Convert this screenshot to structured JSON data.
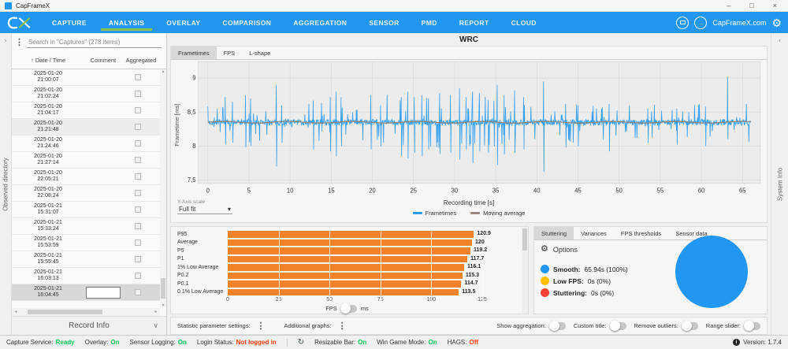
{
  "icons": {
    "kebab": "⋮",
    "gear": "⚙",
    "sort_asc": "↑",
    "chevron_right": "›",
    "chevron_left": "‹",
    "chevron_down": "∨",
    "dropdown_caret": "▾",
    "up_arrow": "▲",
    "down_arrow": "▼",
    "left_arrow": "◄",
    "right_arrow": "►",
    "minimize": "–",
    "maximize": "□",
    "close": "×",
    "refresh": "↻",
    "info": "i",
    "login_arrow": "→",
    "app_glyph": "✓"
  },
  "window": {
    "title": "CapFrameX"
  },
  "navbar": {
    "items": [
      "CAPTURE",
      "ANALYSIS",
      "OVERLAY",
      "COMPARISON",
      "AGGREGATION",
      "SENSOR",
      "PMD",
      "REPORT",
      "CLOUD"
    ],
    "active": "ANALYSIS",
    "right_link": "CapFrameX.com",
    "colors": {
      "bar": "#2196F3",
      "active_underline": "#8BC34A"
    }
  },
  "sidebar": {
    "left_strip_label": "Observed directory",
    "search_placeholder": "Search in \"Captures\" (278 items)",
    "columns": {
      "date": "Date / Time",
      "comment": "Comment",
      "aggregated": "Aggregated"
    },
    "rows": [
      {
        "date": "2025-01-20",
        "time": "21:00:07"
      },
      {
        "date": "2025-01-20",
        "time": "21:02:24"
      },
      {
        "date": "2025-01-20",
        "time": "21:04:17"
      },
      {
        "date": "2025-01-20",
        "time": "21:21:48",
        "highlight": true
      },
      {
        "date": "2025-01-20",
        "time": "21:24:46"
      },
      {
        "date": "2025-01-20",
        "time": "21:27:14"
      },
      {
        "date": "2025-01-20",
        "time": "22:05:21"
      },
      {
        "date": "2025-01-20",
        "time": "22:08:24"
      },
      {
        "date": "2025-01-21",
        "time": "15:31:07"
      },
      {
        "date": "2025-01-21",
        "time": "15:33:24"
      },
      {
        "date": "2025-01-21",
        "time": "15:53:59"
      },
      {
        "date": "2025-01-21",
        "time": "15:55:45"
      },
      {
        "date": "2025-01-21",
        "time": "16:03:13"
      },
      {
        "date": "2025-01-21",
        "time": "16:04:45",
        "selected": true,
        "editing": true
      }
    ],
    "record_info_label": "Record Info"
  },
  "right_strip_label": "System Info",
  "main": {
    "title": "WRC",
    "tabs": [
      "Frametimes",
      "FPS",
      "L-shape"
    ],
    "active_tab": "Frametimes",
    "y_axis_scale_label": "Y-Axis scale",
    "y_axis_scale_value": "Full fit"
  },
  "chart_data": [
    {
      "type": "line",
      "title": "WRC",
      "xlabel": "Recording time [s]",
      "ylabel": "Frametime [ms]",
      "xlim": [
        0,
        66
      ],
      "xticks": [
        0,
        5,
        10,
        15,
        20,
        25,
        30,
        35,
        40,
        45,
        50,
        55,
        60,
        65
      ],
      "ylim": [
        7.45,
        9.17
      ],
      "yticks": [
        9,
        8.5,
        8,
        7.5
      ],
      "ytick_labels": [
        "9",
        "8,5",
        "8",
        "7,5"
      ],
      "grid": true,
      "legend_position": "bottom",
      "series": [
        {
          "name": "Frametimes",
          "color": "#2A9DF4"
        },
        {
          "name": "Moving average",
          "color": "#95857A"
        }
      ],
      "frametimes": {
        "duration_s": 66,
        "baseline_ms": 8.35,
        "noise_ms": 0.045,
        "points": 1500,
        "seed": 7,
        "small_spike_rate": 0.09,
        "small_spike_ms": [
          0.06,
          0.28
        ],
        "dense_region": {
          "from": 20,
          "to": 40,
          "gain": 1.45
        },
        "spikes": [
          {
            "t": 2.1,
            "hi": 8.72,
            "lo": 8.02
          },
          {
            "t": 3.0,
            "hi": 8.65,
            "lo": 8.05
          },
          {
            "t": 4.6,
            "hi": 8.75,
            "lo": 7.98
          },
          {
            "t": 5.2,
            "hi": 8.7,
            "lo": 8.0
          },
          {
            "t": 8.3,
            "hi": 8.9,
            "lo": 7.7
          },
          {
            "t": 9.0,
            "hi": 8.6,
            "lo": 8.05
          },
          {
            "t": 12.8,
            "hi": 8.67,
            "lo": 7.95
          },
          {
            "t": 14.9,
            "hi": 8.72,
            "lo": 7.92
          },
          {
            "t": 15.6,
            "hi": 8.8,
            "lo": 7.85
          },
          {
            "t": 16.2,
            "hi": 8.72,
            "lo": 8.0
          },
          {
            "t": 19.8,
            "hi": 8.75,
            "lo": 7.95
          },
          {
            "t": 21.0,
            "hi": 8.6,
            "lo": 8.0
          },
          {
            "t": 23.5,
            "hi": 8.72,
            "lo": 7.85
          },
          {
            "t": 24.3,
            "hi": 8.8,
            "lo": 7.82
          },
          {
            "t": 25.1,
            "hi": 8.72,
            "lo": 7.9
          },
          {
            "t": 26.0,
            "hi": 8.75,
            "lo": 7.85
          },
          {
            "t": 26.8,
            "hi": 8.7,
            "lo": 7.95
          },
          {
            "t": 28.2,
            "hi": 8.78,
            "lo": 7.88
          },
          {
            "t": 29.5,
            "hi": 8.75,
            "lo": 7.9
          },
          {
            "t": 30.6,
            "hi": 8.85,
            "lo": 7.8
          },
          {
            "t": 31.4,
            "hi": 8.72,
            "lo": 7.95
          },
          {
            "t": 32.2,
            "hi": 8.8,
            "lo": 7.75
          },
          {
            "t": 33.0,
            "hi": 8.78,
            "lo": 7.92
          },
          {
            "t": 34.1,
            "hi": 8.68,
            "lo": 7.9
          },
          {
            "t": 35.2,
            "hi": 8.9,
            "lo": 7.72
          },
          {
            "t": 36.0,
            "hi": 8.75,
            "lo": 7.88
          },
          {
            "t": 37.3,
            "hi": 8.82,
            "lo": 7.9
          },
          {
            "t": 38.4,
            "hi": 8.72,
            "lo": 7.95
          },
          {
            "t": 40.8,
            "hi": 8.95,
            "lo": 7.62
          },
          {
            "t": 43.5,
            "hi": 8.62,
            "lo": 7.98
          },
          {
            "t": 45.0,
            "hi": 8.6,
            "lo": 8.0
          },
          {
            "t": 48.8,
            "hi": 8.62,
            "lo": 7.92
          },
          {
            "t": 53.5,
            "hi": 8.55,
            "lo": 8.05
          },
          {
            "t": 57.0,
            "hi": 8.55,
            "lo": 8.02
          },
          {
            "t": 60.5,
            "hi": 8.58,
            "lo": 8.0
          },
          {
            "t": 63.2,
            "hi": 9.02,
            "lo": 8.1
          }
        ]
      },
      "moving_average": {
        "value_ms": 8.35,
        "wiggle_ms": 0.012
      }
    },
    {
      "type": "bar",
      "orientation": "horizontal",
      "categories": [
        "P95",
        "Average",
        "P5",
        "P1",
        "1% Low Average",
        "P0.2",
        "P0.1",
        "0.1% Low Average"
      ],
      "values": [
        120.9,
        120,
        119.2,
        117.7,
        116.1,
        115.3,
        114.7,
        113.5
      ],
      "xlim": [
        0,
        125
      ],
      "xticks": [
        0,
        25,
        50,
        75,
        100,
        125
      ],
      "bar_color": "#F0822A",
      "unit_toggle": {
        "left": "FPS",
        "right": "ms",
        "selected": "FPS"
      }
    },
    {
      "type": "pie",
      "slices": [
        {
          "label": "Smooth:",
          "value_label": "65.94s (100%)",
          "percent": 100,
          "color": "#2196F3"
        },
        {
          "label": "Low FPS:",
          "value_label": "0s (0%)",
          "percent": 0,
          "color": "#FFC107"
        },
        {
          "label": "Stuttering:",
          "value_label": "0s (0%)",
          "percent": 0,
          "color": "#F44336"
        }
      ]
    }
  ],
  "stutter_panel": {
    "tabs": [
      "Stuttering",
      "Variances",
      "FPS thresholds",
      "Sensor data"
    ],
    "active_tab": "Stuttering",
    "options_label": "Options"
  },
  "bottom_bar": {
    "statistic_label": "Statistic parameter settings:",
    "additional_label": "Additional graphs:",
    "toggles": [
      {
        "label": "Show aggregation:",
        "on": false
      },
      {
        "label": "Custom title:",
        "on": false
      },
      {
        "label": "Remove outliers:",
        "on": false
      },
      {
        "label": "Range slider:",
        "on": false
      }
    ]
  },
  "statusbar": {
    "left_items": [
      {
        "label": "Capture Service:",
        "value": "Ready",
        "color": "#00C853"
      },
      {
        "label": "Overlay:",
        "value": "On",
        "color": "#00C853"
      },
      {
        "label": "Sensor Logging:",
        "value": "On",
        "color": "#00C853"
      },
      {
        "label": "Login Status:",
        "value": "Not logged in",
        "color": "#FF3D00"
      }
    ],
    "right_items": [
      {
        "label": "Resizable Bar:",
        "value": "On",
        "color": "#00C853"
      },
      {
        "label": "Win Game Mode:",
        "value": "On",
        "color": "#00C853"
      },
      {
        "label": "HAGS:",
        "value": "Off",
        "color": "#FF3D00"
      }
    ],
    "version_label": "Version: 1.7.4"
  }
}
